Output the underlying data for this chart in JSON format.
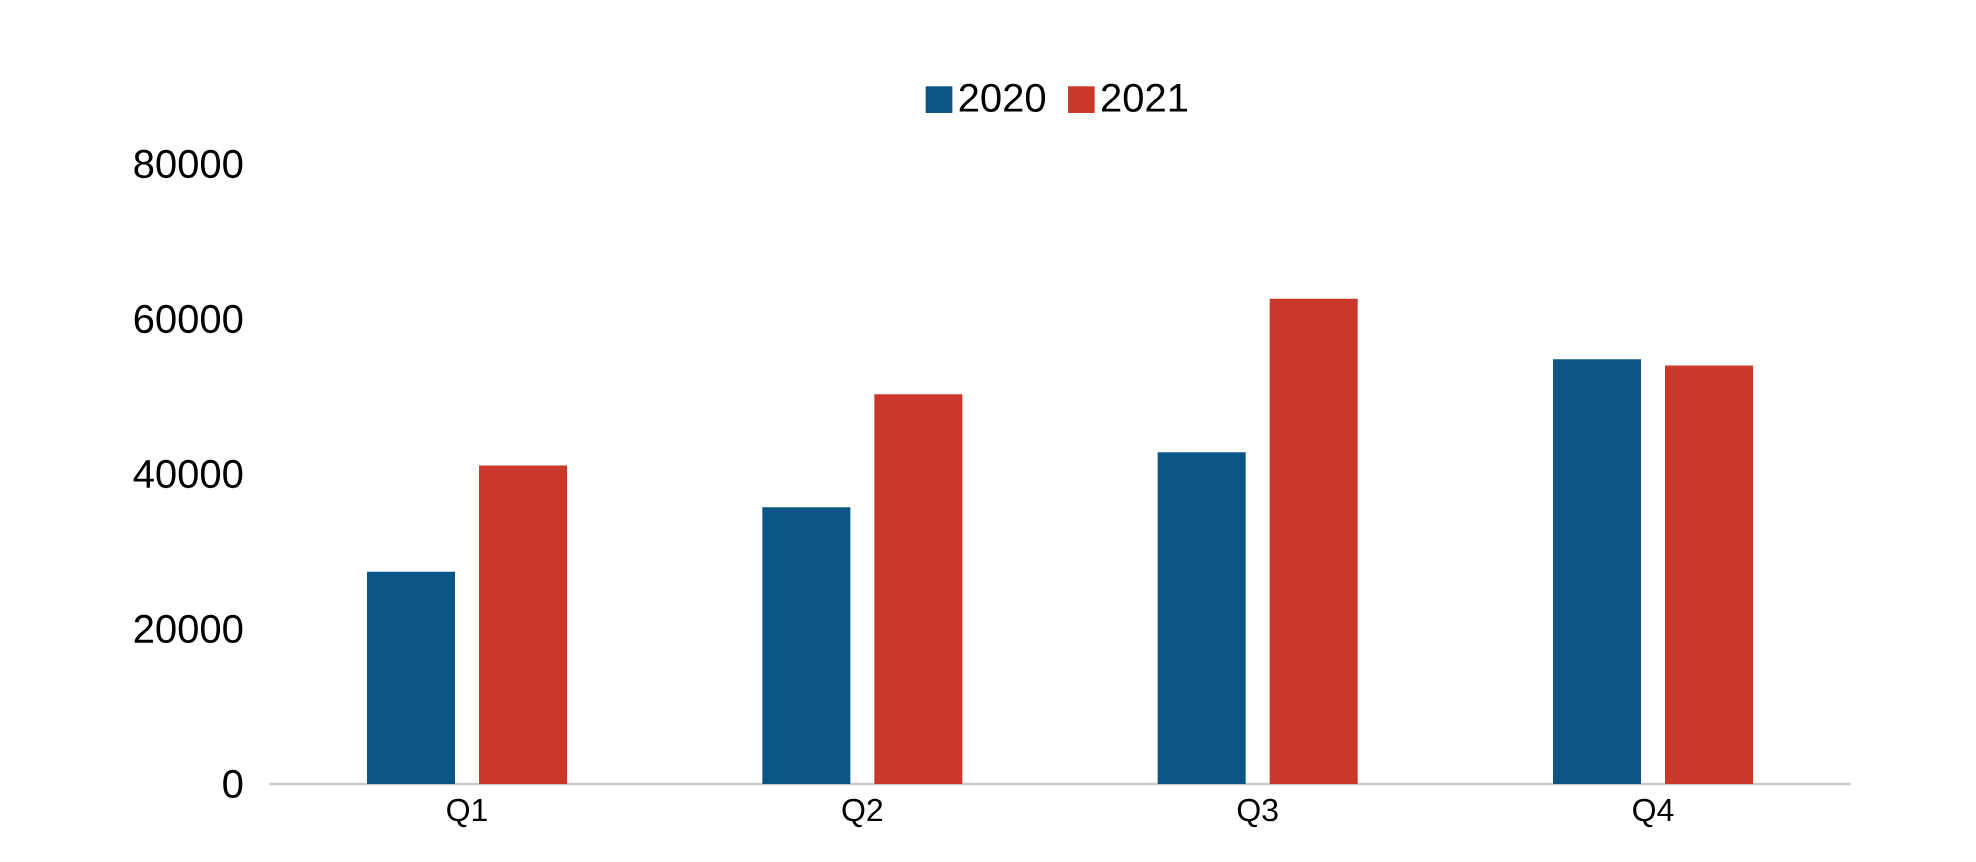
{
  "chart_data": {
    "type": "bar",
    "categories": [
      "Q1",
      "Q2",
      "Q3",
      "Q4"
    ],
    "series": [
      {
        "name": "2020",
        "color": "#0b5586",
        "values": [
          27400,
          35700,
          42800,
          54800
        ]
      },
      {
        "name": "2021",
        "color": "#c9382a",
        "values": [
          41100,
          50300,
          62600,
          54000
        ]
      }
    ],
    "ylim": [
      0,
      80000
    ],
    "yticks": [
      0,
      20000,
      40000,
      60000,
      80000
    ],
    "grid": false,
    "legend": "top"
  }
}
